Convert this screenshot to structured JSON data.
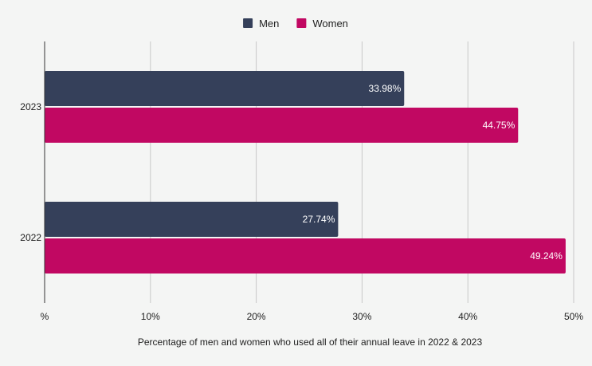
{
  "chart_data": {
    "type": "bar",
    "orientation": "horizontal",
    "categories": [
      "2023",
      "2022"
    ],
    "series": [
      {
        "name": "Men",
        "color": "#35405a",
        "values": [
          33.98,
          27.74
        ],
        "labels": [
          "33.98%",
          "27.74%"
        ]
      },
      {
        "name": "Women",
        "color": "#c10862",
        "values": [
          44.75,
          49.24
        ],
        "labels": [
          "44.75%",
          "49.24%"
        ]
      }
    ],
    "x_ticks": [
      {
        "value": 0,
        "label": "%"
      },
      {
        "value": 10,
        "label": "10%"
      },
      {
        "value": 20,
        "label": "20%"
      },
      {
        "value": 30,
        "label": "30%"
      },
      {
        "value": 40,
        "label": "40%"
      },
      {
        "value": 50,
        "label": "50%"
      }
    ],
    "xlabel": "Percentage of men and women who used all of their annual leave in 2022 & 2023",
    "ylabel": "",
    "title": "",
    "xlim": [
      0,
      50
    ],
    "grid": true,
    "legend_position": "top-center",
    "colors": {
      "background": "#f4f5f4",
      "gridline": "#c8c8c8",
      "axis": "#333333"
    }
  }
}
